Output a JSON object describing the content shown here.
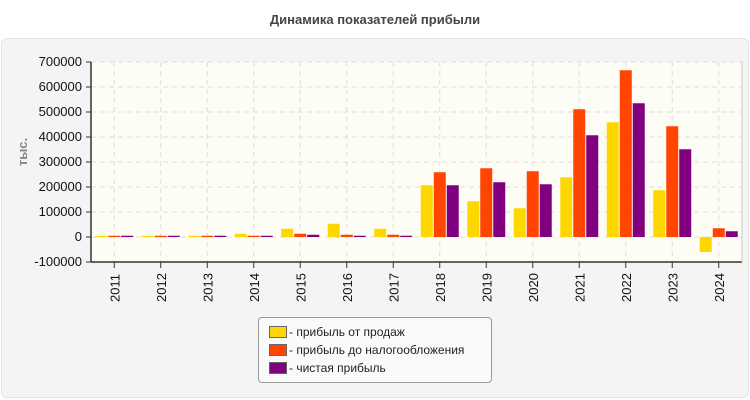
{
  "chart_data": {
    "type": "bar",
    "title": "Динамика показателей прибыли",
    "ylabel": "тыс.",
    "xlabel": "",
    "ylim": [
      -100000,
      700000
    ],
    "yticks": [
      -100000,
      0,
      100000,
      200000,
      300000,
      400000,
      500000,
      600000,
      700000
    ],
    "grid": true,
    "legend_position": "bottom",
    "categories": [
      "2011",
      "2012",
      "2013",
      "2014",
      "2015",
      "2016",
      "2017",
      "2018",
      "2019",
      "2020",
      "2021",
      "2022",
      "2023",
      "2024"
    ],
    "series": [
      {
        "name": "- прибыль от продаж",
        "color": "#FFD700",
        "values": [
          5000,
          5000,
          5000,
          13000,
          33000,
          53000,
          33000,
          207000,
          143000,
          115000,
          239000,
          459000,
          187000,
          -60000
        ]
      },
      {
        "name": "- прибыль до налогообложения",
        "color": "#FF4500",
        "values": [
          5000,
          5000,
          5000,
          5000,
          13000,
          9000,
          9000,
          259000,
          275000,
          263000,
          511000,
          667000,
          443000,
          35000
        ]
      },
      {
        "name": "- чистая прибыль",
        "color": "#800080",
        "values": [
          5000,
          5000,
          5000,
          5000,
          9000,
          5000,
          5000,
          207000,
          219000,
          211000,
          407000,
          535000,
          351000,
          23000
        ]
      }
    ]
  }
}
